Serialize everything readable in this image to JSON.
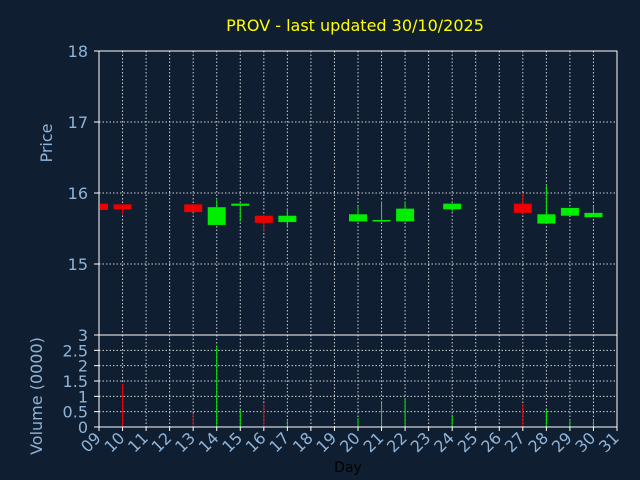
{
  "chart_data": {
    "type": "candlestick",
    "title": "PROV - last updated 30/10/2025",
    "colors": {
      "background": "#0f1e30",
      "title": "#ffff00",
      "axis_text": "#8fb4d8",
      "xlabel_text": "#000000",
      "up": "#00ee00",
      "down": "#ee0000",
      "frame": "#ffffff",
      "grid": "#ffffff"
    },
    "grid": true,
    "price_panel": {
      "ylabel": "Price",
      "ylim": [
        14.0,
        18.0
      ],
      "yticks": [
        "15",
        "16",
        "17",
        "18"
      ],
      "ytick_values": [
        15,
        16,
        17,
        18
      ]
    },
    "volume_panel": {
      "ylabel": "Volume (0000)",
      "ylim": [
        0,
        3
      ],
      "yticks": [
        "0",
        "0.5",
        "1",
        "1.5",
        "2",
        "2.5",
        "3"
      ],
      "ytick_values": [
        0,
        0.5,
        1,
        1.5,
        2,
        2.5,
        3
      ]
    },
    "xlabel": "Day",
    "xlim": [
      9,
      31
    ],
    "xticks": [
      "09",
      "10",
      "11",
      "12",
      "13",
      "14",
      "15",
      "16",
      "17",
      "18",
      "19",
      "20",
      "21",
      "22",
      "23",
      "24",
      "25",
      "26",
      "27",
      "28",
      "29",
      "30",
      "31"
    ],
    "xtick_values": [
      9,
      10,
      11,
      12,
      13,
      14,
      15,
      16,
      17,
      18,
      19,
      20,
      21,
      22,
      23,
      24,
      25,
      26,
      27,
      28,
      29,
      30,
      31
    ],
    "candles": [
      {
        "day": 9,
        "open": 15.85,
        "close": 15.76,
        "high": 15.85,
        "low": 15.76,
        "volume": 0
      },
      {
        "day": 10,
        "open": 15.84,
        "close": 15.77,
        "high": 15.84,
        "low": 15.7,
        "volume": 1.4
      },
      {
        "day": 13,
        "open": 15.84,
        "close": 15.73,
        "high": 15.84,
        "low": 15.73,
        "volume": 0.45
      },
      {
        "day": 14,
        "open": 15.55,
        "close": 15.8,
        "high": 15.9,
        "low": 15.55,
        "volume": 2.65
      },
      {
        "day": 15,
        "open": 15.82,
        "close": 15.85,
        "high": 15.85,
        "low": 15.6,
        "volume": 0.55
      },
      {
        "day": 16,
        "open": 15.68,
        "close": 15.58,
        "high": 15.68,
        "low": 15.45,
        "volume": 0.75
      },
      {
        "day": 17,
        "open": 15.59,
        "close": 15.68,
        "high": 15.78,
        "low": 15.52,
        "volume": 0.2
      },
      {
        "day": 20,
        "open": 15.6,
        "close": 15.7,
        "high": 15.82,
        "low": 15.6,
        "volume": 0.3
      },
      {
        "day": 21,
        "open": 15.6,
        "close": 15.62,
        "high": 15.88,
        "low": 15.6,
        "volume": 0.8
      },
      {
        "day": 22,
        "open": 15.6,
        "close": 15.78,
        "high": 15.88,
        "low": 15.6,
        "volume": 0.95
      },
      {
        "day": 24,
        "open": 15.77,
        "close": 15.85,
        "high": 15.85,
        "low": 15.74,
        "volume": 0.4
      },
      {
        "day": 27,
        "open": 15.85,
        "close": 15.72,
        "high": 16.0,
        "low": 15.72,
        "volume": 0.75
      },
      {
        "day": 28,
        "open": 15.57,
        "close": 15.7,
        "high": 16.1,
        "low": 15.57,
        "volume": 0.55
      },
      {
        "day": 29,
        "open": 15.68,
        "close": 15.79,
        "high": 15.79,
        "low": 15.68,
        "volume": 0.2
      },
      {
        "day": 30,
        "open": 15.66,
        "close": 15.72,
        "high": 15.82,
        "low": 15.66,
        "volume": 0.25
      }
    ]
  }
}
